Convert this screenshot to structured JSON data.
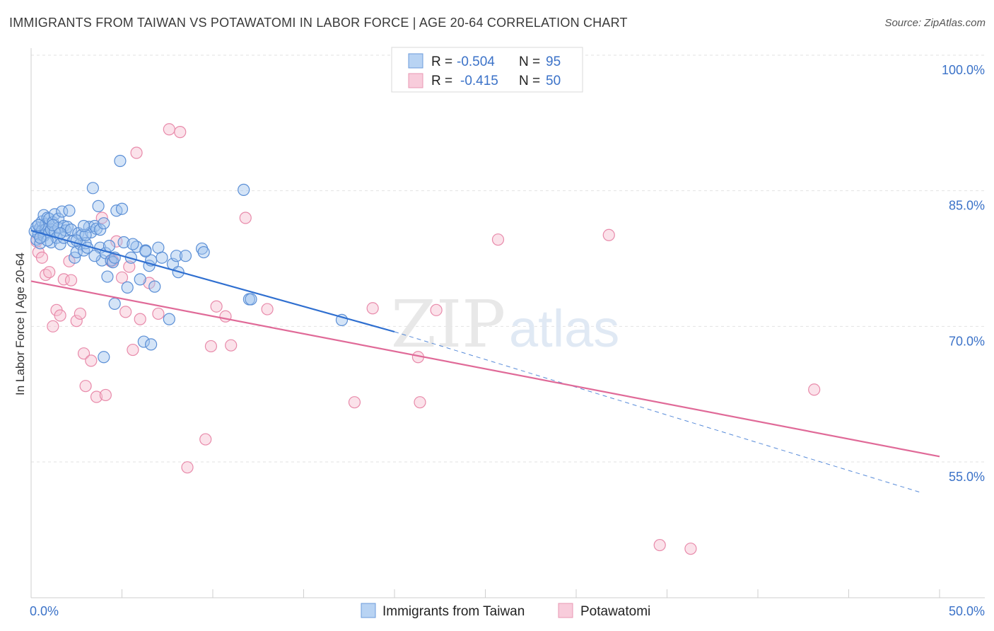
{
  "title": "IMMIGRANTS FROM TAIWAN VS POTAWATOMI IN LABOR FORCE | AGE 20-64 CORRELATION CHART",
  "source": "Source: ZipAtlas.com",
  "watermark": {
    "zip": "ZIP",
    "atlas": "atlas"
  },
  "legend": {
    "rows": [
      {
        "r_label": "R =",
        "r_value": "-0.504",
        "n_label": "N =",
        "n_value": "95"
      },
      {
        "r_label": "R =",
        "r_value": "-0.415",
        "n_label": "N =",
        "n_value": "50"
      }
    ]
  },
  "colors": {
    "series1_fill": "#9fc3ee",
    "series1_stroke": "#5b8fd6",
    "series1_line": "#2f6fd0",
    "series2_fill": "#f6bfd1",
    "series2_stroke": "#e88aaa",
    "series2_line": "#e06a98",
    "tick_text": "#3b72c8",
    "grid": "#e2e2e2"
  },
  "chart_data": {
    "type": "scatter",
    "title": "IMMIGRANTS FROM TAIWAN VS POTAWATOMI IN LABOR FORCE | AGE 20-64 CORRELATION CHART",
    "xlabel": "",
    "ylabel": "In Labor Force | Age 20-64",
    "xlim": [
      0,
      50
    ],
    "ylim": [
      40,
      102
    ],
    "x_tick_labels": [
      "0.0%",
      "50.0%"
    ],
    "y_ticks": [
      55,
      70,
      85,
      100
    ],
    "y_tick_labels": [
      "55.0%",
      "70.0%",
      "85.0%",
      "100.0%"
    ],
    "series": [
      {
        "name": "Immigrants from Taiwan",
        "r": -0.504,
        "n": 95,
        "trend": {
          "x0": 0.0,
          "y0": 80.6,
          "x1": 20.0,
          "y1": 69.4,
          "dash_to_x": 49.0,
          "dash_to_y": 51.6
        },
        "points": [
          [
            0.2,
            80.5
          ],
          [
            0.3,
            79.6
          ],
          [
            0.3,
            81.0
          ],
          [
            0.4,
            80.2
          ],
          [
            0.5,
            80.9
          ],
          [
            0.5,
            79.2
          ],
          [
            0.6,
            81.6
          ],
          [
            0.6,
            80.6
          ],
          [
            0.7,
            82.3
          ],
          [
            0.7,
            80.0
          ],
          [
            0.8,
            81.3
          ],
          [
            0.8,
            80.7
          ],
          [
            0.9,
            82.0
          ],
          [
            1.0,
            80.4
          ],
          [
            1.0,
            81.9
          ],
          [
            1.1,
            79.3
          ],
          [
            1.1,
            80.7
          ],
          [
            1.2,
            81.5
          ],
          [
            1.3,
            80.5
          ],
          [
            1.3,
            82.4
          ],
          [
            1.4,
            79.8
          ],
          [
            1.5,
            81.9
          ],
          [
            1.5,
            80.9
          ],
          [
            1.6,
            79.1
          ],
          [
            1.7,
            82.7
          ],
          [
            1.8,
            81.1
          ],
          [
            1.8,
            79.8
          ],
          [
            1.9,
            80.6
          ],
          [
            2.0,
            81.0
          ],
          [
            2.1,
            82.8
          ],
          [
            2.2,
            80.7
          ],
          [
            2.3,
            79.4
          ],
          [
            2.4,
            77.6
          ],
          [
            2.5,
            78.2
          ],
          [
            2.6,
            80.3
          ],
          [
            2.7,
            79.1
          ],
          [
            2.8,
            80.1
          ],
          [
            2.9,
            78.4
          ],
          [
            3.0,
            79.2
          ],
          [
            3.1,
            78.7
          ],
          [
            3.2,
            81.0
          ],
          [
            3.3,
            80.4
          ],
          [
            3.4,
            85.3
          ],
          [
            3.5,
            81.1
          ],
          [
            3.6,
            80.8
          ],
          [
            3.7,
            83.3
          ],
          [
            3.8,
            78.7
          ],
          [
            3.8,
            80.7
          ],
          [
            3.9,
            77.3
          ],
          [
            4.0,
            81.4
          ],
          [
            4.1,
            78.1
          ],
          [
            4.2,
            75.5
          ],
          [
            4.4,
            77.3
          ],
          [
            4.5,
            77.1
          ],
          [
            4.6,
            72.5
          ],
          [
            4.6,
            77.6
          ],
          [
            4.7,
            82.8
          ],
          [
            4.9,
            88.3
          ],
          [
            5.0,
            83.0
          ],
          [
            5.1,
            79.3
          ],
          [
            5.3,
            74.3
          ],
          [
            5.5,
            77.6
          ],
          [
            5.8,
            78.8
          ],
          [
            6.0,
            75.2
          ],
          [
            6.2,
            68.3
          ],
          [
            6.3,
            78.4
          ],
          [
            6.5,
            76.7
          ],
          [
            6.6,
            77.3
          ],
          [
            6.6,
            68.0
          ],
          [
            6.8,
            74.4
          ],
          [
            7.0,
            78.7
          ],
          [
            7.2,
            77.6
          ],
          [
            7.6,
            70.8
          ],
          [
            7.8,
            76.9
          ],
          [
            8.0,
            77.8
          ],
          [
            8.1,
            76.0
          ],
          [
            8.5,
            77.8
          ],
          [
            9.4,
            78.6
          ],
          [
            9.5,
            78.2
          ],
          [
            11.7,
            85.1
          ],
          [
            12.0,
            73.0
          ],
          [
            12.1,
            73.0
          ],
          [
            17.1,
            70.7
          ],
          [
            0.4,
            81.2
          ],
          [
            0.9,
            79.5
          ],
          [
            1.2,
            81.2
          ],
          [
            2.5,
            79.5
          ],
          [
            3.0,
            80.1
          ],
          [
            4.3,
            78.9
          ],
          [
            5.6,
            79.1
          ],
          [
            1.6,
            80.3
          ],
          [
            2.9,
            81.1
          ],
          [
            0.5,
            79.8
          ],
          [
            3.5,
            77.8
          ],
          [
            6.3,
            78.3
          ],
          [
            4.0,
            66.6
          ]
        ]
      },
      {
        "name": "Potawatomi",
        "r": -0.415,
        "n": 50,
        "trend": {
          "x0": 0.0,
          "y0": 75.0,
          "x1": 50.0,
          "y1": 55.6
        },
        "points": [
          [
            0.3,
            79.4
          ],
          [
            0.4,
            78.2
          ],
          [
            0.6,
            77.6
          ],
          [
            0.8,
            75.7
          ],
          [
            1.0,
            76.0
          ],
          [
            1.2,
            70.0
          ],
          [
            1.4,
            71.8
          ],
          [
            1.6,
            71.2
          ],
          [
            1.8,
            75.2
          ],
          [
            2.1,
            77.2
          ],
          [
            2.2,
            75.1
          ],
          [
            2.5,
            70.6
          ],
          [
            2.7,
            71.4
          ],
          [
            2.9,
            67.0
          ],
          [
            3.0,
            63.4
          ],
          [
            3.3,
            66.2
          ],
          [
            3.6,
            62.2
          ],
          [
            3.9,
            82.0
          ],
          [
            4.1,
            62.4
          ],
          [
            4.4,
            77.2
          ],
          [
            4.5,
            77.3
          ],
          [
            4.7,
            79.4
          ],
          [
            5.0,
            75.4
          ],
          [
            5.2,
            71.6
          ],
          [
            5.4,
            76.6
          ],
          [
            5.6,
            67.4
          ],
          [
            5.8,
            89.2
          ],
          [
            6.0,
            70.8
          ],
          [
            6.5,
            74.8
          ],
          [
            7.0,
            71.4
          ],
          [
            7.6,
            91.8
          ],
          [
            8.2,
            91.5
          ],
          [
            8.6,
            54.4
          ],
          [
            9.6,
            57.5
          ],
          [
            9.9,
            67.8
          ],
          [
            10.2,
            72.2
          ],
          [
            10.7,
            71.1
          ],
          [
            11.0,
            67.9
          ],
          [
            11.8,
            82.0
          ],
          [
            13.0,
            71.9
          ],
          [
            17.8,
            61.6
          ],
          [
            18.8,
            72.0
          ],
          [
            21.3,
            66.6
          ],
          [
            21.4,
            61.6
          ],
          [
            22.3,
            71.8
          ],
          [
            25.7,
            79.6
          ],
          [
            31.8,
            80.1
          ],
          [
            34.6,
            45.8
          ],
          [
            36.3,
            45.4
          ],
          [
            43.1,
            63.0
          ]
        ]
      }
    ]
  },
  "bottom_legend": [
    {
      "label": "Immigrants from Taiwan"
    },
    {
      "label": "Potawatomi"
    }
  ]
}
